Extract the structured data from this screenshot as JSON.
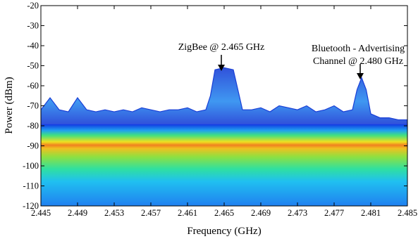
{
  "chart_data": {
    "type": "line",
    "x_label": "Frequency (GHz)",
    "y_label": "Power (dBm)",
    "x": [
      2.445,
      2.446,
      2.447,
      2.448,
      2.449,
      2.45,
      2.451,
      2.452,
      2.453,
      2.454,
      2.455,
      2.456,
      2.457,
      2.458,
      2.459,
      2.46,
      2.461,
      2.462,
      2.463,
      2.4635,
      2.464,
      2.465,
      2.466,
      2.4665,
      2.467,
      2.468,
      2.469,
      2.47,
      2.471,
      2.472,
      2.473,
      2.474,
      2.475,
      2.476,
      2.477,
      2.478,
      2.479,
      2.4795,
      2.48,
      2.4805,
      2.481,
      2.482,
      2.483,
      2.484,
      2.485
    ],
    "values": [
      -72,
      -66,
      -72,
      -73,
      -66,
      -72,
      -73,
      -72,
      -73,
      -72,
      -73,
      -71,
      -72,
      -73,
      -72,
      -72,
      -71,
      -73,
      -72,
      -65,
      -52,
      -51,
      -52,
      -62,
      -72,
      -72,
      -71,
      -73,
      -70,
      -71,
      -72,
      -70,
      -73,
      -72,
      -70,
      -73,
      -72,
      -62,
      -56,
      -62,
      -74,
      -76,
      -76,
      -77,
      -77
    ],
    "color": "#1a3fd6",
    "xlim": [
      2.445,
      2.485
    ],
    "ylim": [
      -120,
      -20
    ],
    "xticks": [
      2.445,
      2.449,
      2.453,
      2.457,
      2.461,
      2.465,
      2.469,
      2.473,
      2.477,
      2.481,
      2.485
    ],
    "yticks": [
      -120,
      -110,
      -100,
      -90,
      -80,
      -70,
      -60,
      -50,
      -40,
      -30,
      -20
    ],
    "annotations": [
      {
        "lines": [
          "ZigBee @ 2.465 GHz"
        ]
      },
      {
        "lines": [
          "Bluetooth - Advertising",
          "Channel @ 2.480 GHz"
        ]
      }
    ]
  }
}
